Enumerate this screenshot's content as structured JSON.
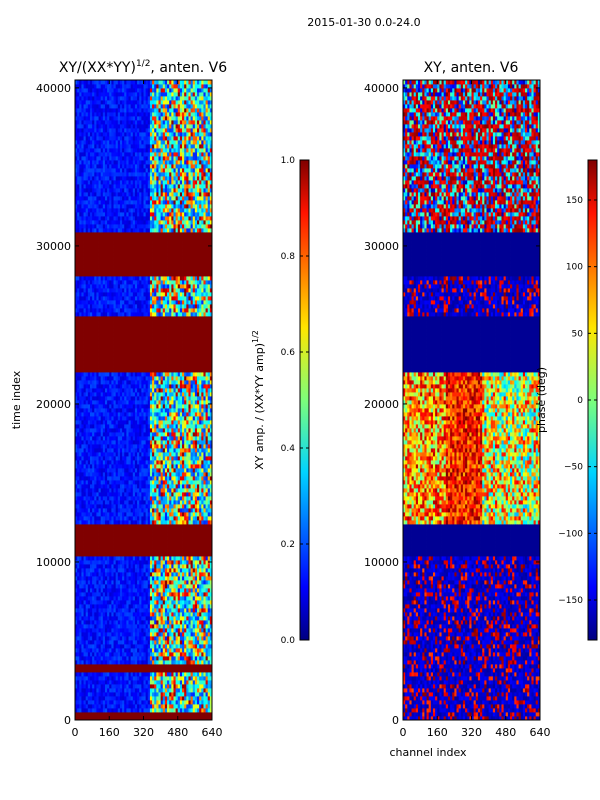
{
  "figure": {
    "suptitle": "2015-01-30 0.0-24.0"
  },
  "chart_data": [
    {
      "type": "heatmap",
      "title": "XY/(XX*YY)",
      "title_exponent": "1/2",
      "title_suffix": ", anten. V6",
      "xlabel": "",
      "ylabel": "time index",
      "x_range": [
        0,
        640
      ],
      "y_range": [
        0,
        40500
      ],
      "x_ticks": [
        0,
        160,
        320,
        480,
        640
      ],
      "x_tick_labels": [
        "0",
        "160",
        "320",
        "480",
        "640"
      ],
      "y_ticks": [
        0,
        10000,
        20000,
        30000,
        40000
      ],
      "y_tick_labels": [
        "0",
        "10000",
        "20000",
        "30000",
        "40000"
      ],
      "colormap": "jet",
      "colorbar": {
        "label": "XY amp. / (XX*YY amp)",
        "label_exponent": "1/2",
        "range": [
          0.0,
          1.0
        ],
        "ticks": [
          0.0,
          0.2,
          0.4,
          0.6,
          0.8,
          1.0
        ],
        "tick_labels": [
          "0.0",
          "0.2",
          "0.4",
          "0.6",
          "0.8",
          "1.0"
        ]
      },
      "saturated_time_bands": [
        [
          0,
          500
        ],
        [
          3000,
          3600
        ],
        [
          10300,
          12400
        ],
        [
          22000,
          25600
        ],
        [
          28000,
          31000
        ]
      ]
    },
    {
      "type": "heatmap",
      "title": "XY, anten. V6",
      "xlabel": "channel index",
      "ylabel": "",
      "x_range": [
        0,
        640
      ],
      "y_range": [
        0,
        40500
      ],
      "x_ticks": [
        0,
        160,
        320,
        480,
        640
      ],
      "x_tick_labels": [
        "0",
        "160",
        "320",
        "480",
        "640"
      ],
      "y_ticks": [
        0,
        10000,
        20000,
        30000,
        40000
      ],
      "y_tick_labels": [
        "0",
        "10000",
        "20000",
        "30000",
        "40000"
      ],
      "colormap": "jet",
      "colorbar": {
        "label": "phase (deg)",
        "range": [
          -180,
          180
        ],
        "ticks": [
          -150,
          -100,
          -50,
          0,
          50,
          100,
          150
        ],
        "tick_labels": [
          "−150",
          "−100",
          "−50",
          "0",
          "50",
          "100",
          "150"
        ]
      },
      "flat_time_bands": [
        [
          10300,
          12400
        ],
        [
          22000,
          25600
        ],
        [
          28000,
          31000
        ]
      ]
    }
  ]
}
